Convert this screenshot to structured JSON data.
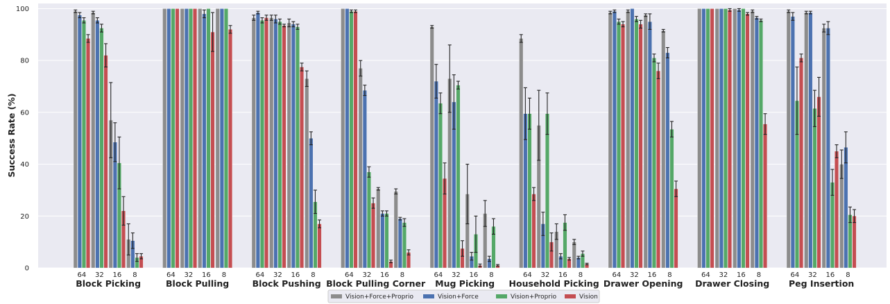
{
  "chart_data": {
    "type": "bar",
    "ylabel": "Success Rate (%)",
    "xlabel": "",
    "ylim": [
      0,
      102
    ],
    "yticks": [
      0,
      20,
      40,
      60,
      80,
      100
    ],
    "grid": true,
    "legend_position": "bottom-center",
    "subcategories": [
      "64",
      "32",
      "16",
      "8"
    ],
    "colors": {
      "Vision+Force+Proprio": "#8c8c8c",
      "Vision+Force": "#4c72b0",
      "Vision+Proprio": "#55a868",
      "Vision": "#c44e52",
      "plot_bg": "#eaeaf2",
      "grid": "#ffffff"
    },
    "series_names": [
      "Vision+Force+Proprio",
      "Vision+Force",
      "Vision+Proprio",
      "Vision"
    ],
    "groups": [
      {
        "name": "Block Picking",
        "values": [
          [
            99,
            97.5,
            95.5,
            88.5
          ],
          [
            98.5,
            95.5,
            92.5,
            82
          ],
          [
            57,
            48.5,
            40.5,
            22
          ],
          [
            11,
            10.5,
            4,
            4.5
          ]
        ],
        "errors": [
          [
            0.5,
            1,
            1,
            1.5
          ],
          [
            0.5,
            1,
            1.5,
            4.5
          ],
          [
            14.5,
            7.5,
            10,
            5.5
          ],
          [
            6,
            3,
            1.5,
            1
          ]
        ]
      },
      {
        "name": "Block Pulling",
        "values": [
          [
            100,
            100,
            100,
            100
          ],
          [
            100,
            100,
            100,
            100
          ],
          [
            100,
            98,
            100,
            91
          ],
          [
            100,
            100,
            100,
            92
          ]
        ],
        "errors": [
          [
            0,
            0,
            0,
            0
          ],
          [
            0,
            0,
            0,
            0
          ],
          [
            0,
            1.5,
            0,
            7.5
          ],
          [
            0,
            0,
            0,
            1.5
          ]
        ]
      },
      {
        "name": "Block Pushing",
        "values": [
          [
            96.5,
            98.5,
            95.5,
            96.5
          ],
          [
            96.5,
            96,
            95,
            93.5
          ],
          [
            94.5,
            94,
            93,
            77.5
          ],
          [
            73,
            50,
            25.5,
            17
          ]
        ],
        "errors": [
          [
            1,
            0.5,
            1,
            1
          ],
          [
            1,
            1.5,
            1,
            0.5
          ],
          [
            1.5,
            1,
            1,
            1.5
          ],
          [
            3,
            2.5,
            4.5,
            1.5
          ]
        ]
      },
      {
        "name": "Block Pulling Corner",
        "values": [
          [
            100,
            100,
            99,
            99
          ],
          [
            77,
            68.5,
            37,
            25
          ],
          [
            30.5,
            21,
            21,
            2.5
          ],
          [
            29.5,
            19,
            17.5,
            6
          ]
        ],
        "errors": [
          [
            0,
            0,
            0.5,
            0.5
          ],
          [
            3,
            2,
            2,
            2
          ],
          [
            0.5,
            1,
            1,
            0.5
          ],
          [
            1,
            0.5,
            1.5,
            1
          ]
        ]
      },
      {
        "name": "Mug Picking",
        "values": [
          [
            93,
            72,
            63.5,
            34.5
          ],
          [
            73,
            64,
            70.5,
            7.5
          ],
          [
            28.5,
            4.5,
            13,
            1
          ],
          [
            21,
            3.5,
            16,
            1
          ]
        ],
        "errors": [
          [
            0.5,
            6.5,
            4,
            6
          ],
          [
            13,
            10.5,
            1.5,
            3
          ],
          [
            11.5,
            1.5,
            7,
            0.5
          ],
          [
            5,
            1,
            3,
            0.3
          ]
        ]
      },
      {
        "name": "Household Picking",
        "values": [
          [
            88.5,
            59.5,
            59.5,
            28.5
          ],
          [
            55,
            17,
            59.5,
            10
          ],
          [
            14,
            4.5,
            17.5,
            3.5
          ],
          [
            10,
            4,
            5.5,
            1.5
          ]
        ],
        "errors": [
          [
            1.5,
            10,
            6,
            2.5
          ],
          [
            13.5,
            4.5,
            8,
            3.5
          ],
          [
            3,
            1,
            3,
            0.5
          ],
          [
            1,
            0.5,
            1,
            0.3
          ]
        ]
      },
      {
        "name": "Drawer Opening",
        "values": [
          [
            98.5,
            99,
            95,
            94
          ],
          [
            99,
            100,
            96,
            94
          ],
          [
            97.5,
            95,
            81,
            76
          ],
          [
            91.5,
            83,
            53.5,
            30.5
          ]
        ],
        "errors": [
          [
            0.5,
            0.5,
            1,
            1
          ],
          [
            0.5,
            0,
            1,
            1.5
          ],
          [
            0.5,
            3,
            1.5,
            3
          ],
          [
            0.5,
            2,
            3,
            3
          ]
        ]
      },
      {
        "name": "Drawer Closing",
        "values": [
          [
            100,
            100,
            100,
            100
          ],
          [
            100,
            100,
            100,
            99.5
          ],
          [
            100,
            99.5,
            100,
            98
          ],
          [
            99,
            96.5,
            95.5,
            55.5
          ]
        ],
        "errors": [
          [
            0,
            0,
            0,
            0
          ],
          [
            0,
            0,
            0,
            0.5
          ],
          [
            0,
            0.5,
            0,
            0.5
          ],
          [
            0.5,
            0.5,
            0.5,
            4
          ]
        ]
      },
      {
        "name": "Peg Insertion",
        "values": [
          [
            99,
            97,
            64.5,
            81
          ],
          [
            98.5,
            98.5,
            61.5,
            66
          ],
          [
            92.5,
            92.5,
            33,
            45
          ],
          [
            40,
            46.5,
            20.5,
            20
          ]
        ],
        "errors": [
          [
            0.5,
            1.5,
            13,
            1.5
          ],
          [
            0.5,
            0.5,
            7,
            7.5
          ],
          [
            1.5,
            2.5,
            5,
            2.5
          ],
          [
            5.5,
            6,
            3,
            2.5
          ]
        ]
      }
    ]
  }
}
